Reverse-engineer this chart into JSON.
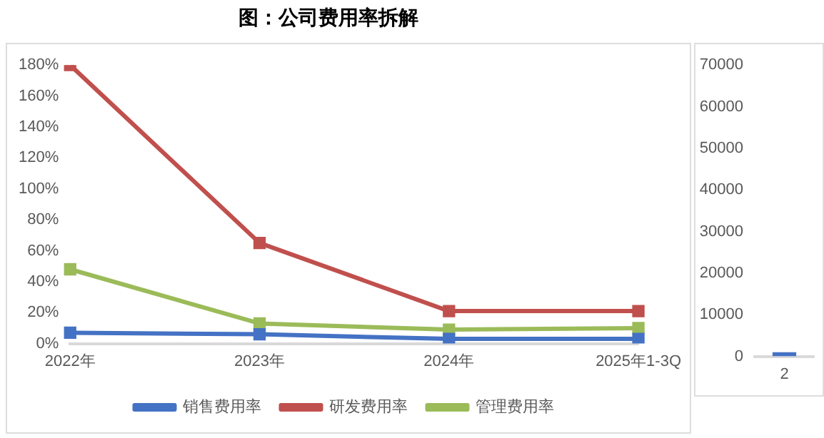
{
  "chart_data": [
    {
      "type": "line",
      "title": "图：公司费用率拆解",
      "categories": [
        "2022年",
        "2023年",
        "2024年",
        "2025年1-3Q"
      ],
      "series": [
        {
          "name": "销售费用率",
          "color": "#4472c4",
          "values": [
            7,
            6,
            3,
            3
          ]
        },
        {
          "name": "研发费用率",
          "color": "#c0504d",
          "values": [
            180,
            65,
            21,
            21
          ]
        },
        {
          "name": "管理费用率",
          "color": "#9bbb59",
          "values": [
            48,
            13,
            9,
            10
          ]
        }
      ],
      "ylim": [
        0,
        180
      ],
      "yticks": [
        {
          "value": 0,
          "label": "0%"
        },
        {
          "value": 20,
          "label": "20%"
        },
        {
          "value": 40,
          "label": "40%"
        },
        {
          "value": 60,
          "label": "60%"
        },
        {
          "value": 80,
          "label": "80%"
        },
        {
          "value": 100,
          "label": "100%"
        },
        {
          "value": 120,
          "label": "120%"
        },
        {
          "value": 140,
          "label": "140%"
        },
        {
          "value": 160,
          "label": "160%"
        },
        {
          "value": 180,
          "label": "180%"
        }
      ],
      "grid": false,
      "legend": "bottom",
      "marker": "square",
      "line_style": "solid"
    },
    {
      "type": "bar",
      "categories": [
        "2"
      ],
      "values": [
        1000
      ],
      "color": "#4472c4",
      "ylim": [
        0,
        70000
      ],
      "yticks": [
        0,
        10000,
        20000,
        30000,
        40000,
        50000,
        60000,
        70000
      ],
      "grid": false
    }
  ]
}
